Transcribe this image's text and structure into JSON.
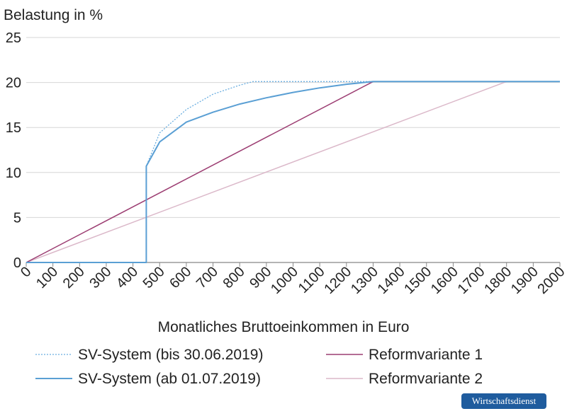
{
  "chart_data": {
    "type": "line",
    "ylabel": "Belastung in %",
    "xlabel": "Monatliches Bruttoeinkommen in Euro",
    "xlim": [
      0,
      2000
    ],
    "ylim": [
      0,
      25
    ],
    "x_ticks": [
      0,
      100,
      200,
      300,
      400,
      500,
      600,
      700,
      800,
      900,
      1000,
      1100,
      1200,
      1300,
      1400,
      1500,
      1600,
      1700,
      1800,
      1900,
      2000
    ],
    "y_ticks": [
      0,
      5,
      10,
      15,
      20,
      25
    ],
    "grid": "horizontal",
    "legend_position": "bottom",
    "series": [
      {
        "name": "SV-System (bis 30.06.2019)",
        "color": "#6aaee0",
        "style": "dotted",
        "points": [
          [
            0,
            0
          ],
          [
            450,
            0
          ],
          [
            450,
            10.7
          ],
          [
            500,
            14.4
          ],
          [
            600,
            17.0
          ],
          [
            700,
            18.7
          ],
          [
            800,
            19.7
          ],
          [
            850,
            20.1
          ],
          [
            2000,
            20.1
          ]
        ]
      },
      {
        "name": "SV-System (ab 01.07.2019)",
        "color": "#5a9fd4",
        "style": "solid",
        "points": [
          [
            0,
            0
          ],
          [
            450,
            0
          ],
          [
            450,
            10.7
          ],
          [
            500,
            13.4
          ],
          [
            600,
            15.6
          ],
          [
            700,
            16.7
          ],
          [
            800,
            17.6
          ],
          [
            900,
            18.3
          ],
          [
            1000,
            18.9
          ],
          [
            1100,
            19.4
          ],
          [
            1200,
            19.8
          ],
          [
            1300,
            20.1
          ],
          [
            2000,
            20.1
          ]
        ]
      },
      {
        "name": "Reformvariante 1",
        "color": "#9c3d72",
        "style": "solid",
        "points": [
          [
            0,
            0
          ],
          [
            1300,
            20.1
          ],
          [
            2000,
            20.1
          ]
        ]
      },
      {
        "name": "Reformvariante 2",
        "color": "#dbb8c9",
        "style": "solid",
        "points": [
          [
            0,
            0
          ],
          [
            1800,
            20.1
          ],
          [
            2000,
            20.1
          ]
        ]
      }
    ]
  },
  "logo": "Wirtschaftsdienst"
}
